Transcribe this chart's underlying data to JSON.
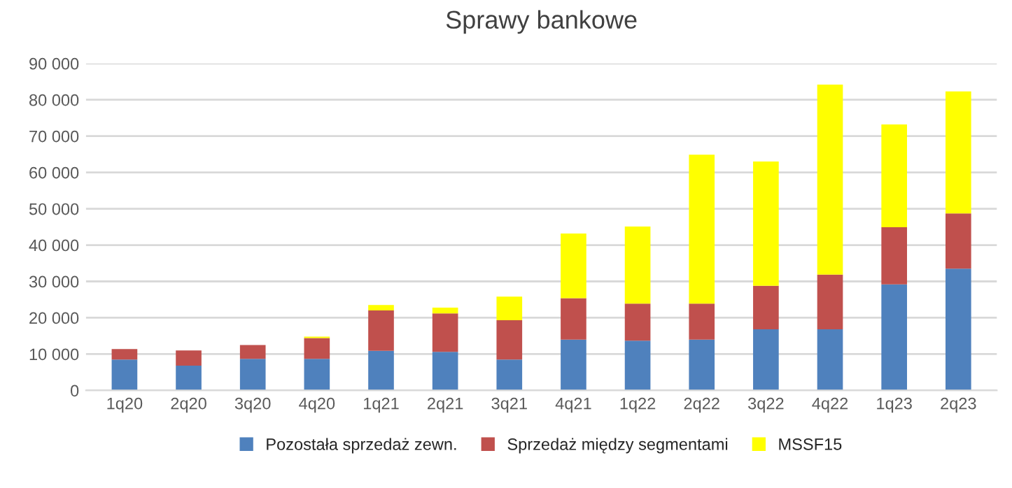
{
  "chart_data": {
    "type": "bar",
    "title": "Sprawy bankowe",
    "stacked": true,
    "categories": [
      "1q20",
      "2q20",
      "3q20",
      "4q20",
      "1q21",
      "2q21",
      "3q21",
      "4q21",
      "1q22",
      "2q22",
      "3q22",
      "4q22",
      "1q23",
      "2q23"
    ],
    "series": [
      {
        "name": "Pozostała sprzedaż zewn.",
        "color": "#4f81bd",
        "values": [
          8500,
          6800,
          8700,
          8700,
          10900,
          10600,
          8500,
          14000,
          13700,
          14000,
          16800,
          16800,
          29200,
          33500
        ]
      },
      {
        "name": "Sprzedaż między segmentami",
        "color": "#c0504d",
        "values": [
          2900,
          4200,
          3800,
          5700,
          11100,
          10600,
          10800,
          11400,
          10200,
          9900,
          12000,
          15100,
          15700,
          15200
        ]
      },
      {
        "name": "MSSF15",
        "color": "#ffff00",
        "values": [
          null,
          null,
          null,
          400,
          1500,
          1600,
          6500,
          17800,
          21200,
          41000,
          34200,
          52300,
          28300,
          33600
        ]
      }
    ],
    "ylim": [
      0,
      90000
    ],
    "yticks": [
      {
        "value": 0,
        "label": "0"
      },
      {
        "value": 10000,
        "label": "10 000"
      },
      {
        "value": 20000,
        "label": "20 000"
      },
      {
        "value": 30000,
        "label": "30 000"
      },
      {
        "value": 40000,
        "label": "40 000"
      },
      {
        "value": 50000,
        "label": "50 000"
      },
      {
        "value": 60000,
        "label": "60 000"
      },
      {
        "value": 70000,
        "label": "70 000"
      },
      {
        "value": 80000,
        "label": "80 000"
      },
      {
        "value": 90000,
        "label": "90 000"
      }
    ],
    "grid": "y",
    "legend": "bottom"
  }
}
